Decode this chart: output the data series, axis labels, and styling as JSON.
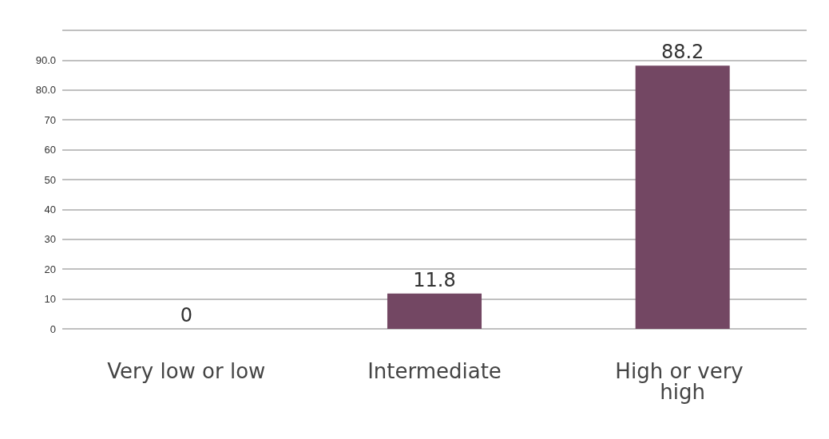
{
  "chart_data": {
    "type": "bar",
    "categories": [
      "Very low or low",
      "Intermediate",
      "High or very high"
    ],
    "values": [
      0,
      11.8,
      88.2
    ],
    "color": "#734763",
    "data_labels": true,
    "grid": "y",
    "ylim": [
      0,
      100
    ],
    "yticks": [
      0,
      10,
      20,
      30,
      40,
      50,
      60,
      70,
      {
        "value": 80,
        "label": "80.0"
      },
      {
        "value": 90,
        "label": "90.0"
      },
      {
        "value": 100,
        "label": null
      }
    ]
  }
}
